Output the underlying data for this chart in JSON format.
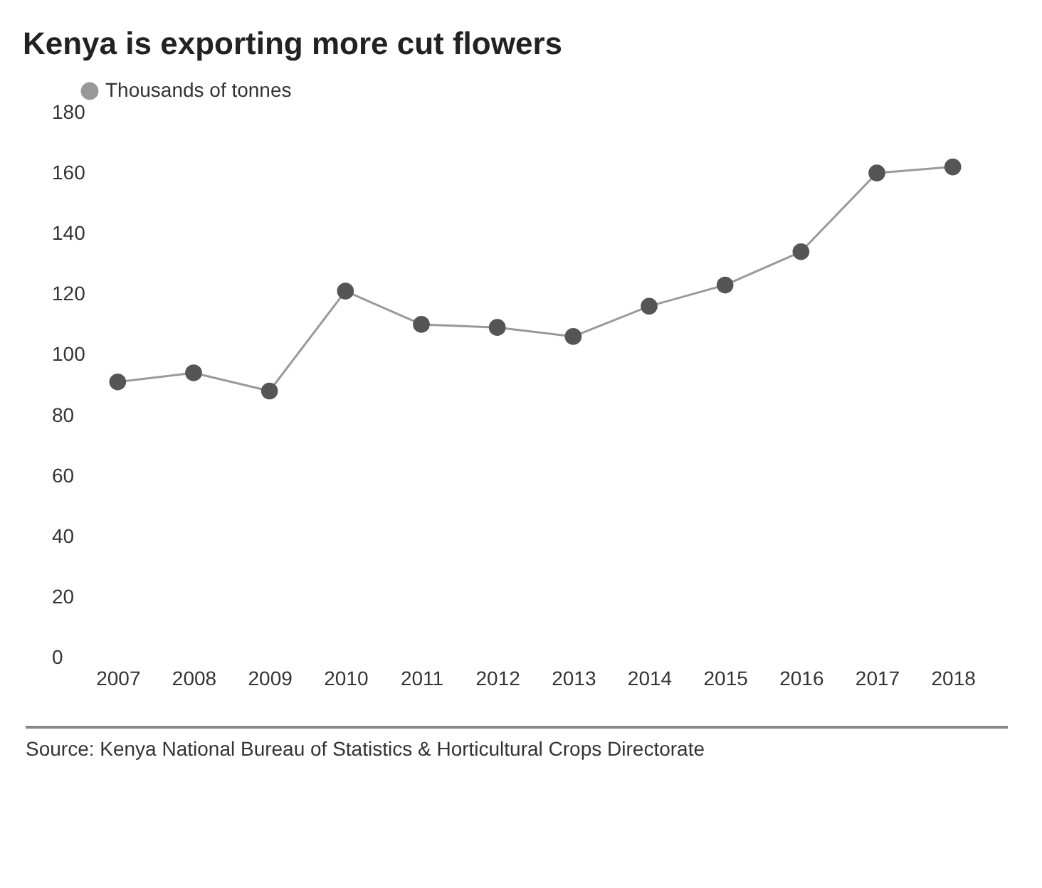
{
  "chart_data": {
    "type": "line",
    "title": "Kenya is exporting more cut flowers",
    "categories": [
      "2007",
      "2008",
      "2009",
      "2010",
      "2011",
      "2012",
      "2013",
      "2014",
      "2015",
      "2016",
      "2017",
      "2018"
    ],
    "series": [
      {
        "name": "Thousands of tonnes",
        "color": "#555555",
        "values": [
          91,
          94,
          88,
          121,
          110,
          109,
          106,
          116,
          123,
          134,
          160,
          162
        ]
      }
    ],
    "ylim": [
      0,
      180
    ],
    "yticks": [
      0,
      20,
      40,
      60,
      80,
      100,
      120,
      140,
      160,
      180
    ],
    "marker": "circle",
    "line_style": "solid",
    "legend": "top left",
    "annotations": [
      "Source: Kenya National Bureau of Statistics & Horticultural Crops Directorate"
    ]
  }
}
